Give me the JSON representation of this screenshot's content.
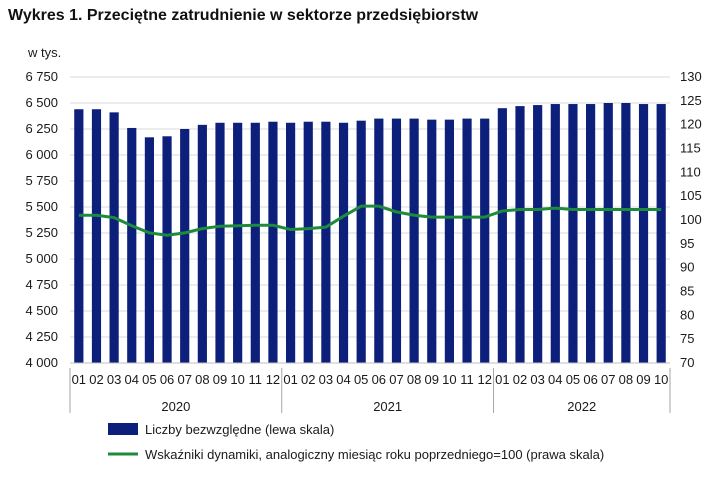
{
  "chart_data": {
    "type": "bar",
    "title": "Wykres 1. Przeciętne zatrudnienie w sektorze przedsiębiorstw",
    "ylabel": "w tys.",
    "ylim": [
      4000,
      6750
    ],
    "y_ticks": [
      "4 000",
      "4 250",
      "4 500",
      "4 750",
      "5 000",
      "5 250",
      "5 500",
      "5 750",
      "6 000",
      "6 250",
      "6 500",
      "6 750"
    ],
    "y2lim": [
      70,
      130
    ],
    "y2_ticks": [
      "70",
      "75",
      "80",
      "85",
      "90",
      "95",
      "100",
      "105",
      "110",
      "115",
      "120",
      "125",
      "130"
    ],
    "categories": [
      "01",
      "02",
      "03",
      "04",
      "05",
      "06",
      "07",
      "08",
      "09",
      "10",
      "11",
      "12",
      "01",
      "02",
      "03",
      "04",
      "05",
      "06",
      "07",
      "08",
      "09",
      "10",
      "11",
      "12",
      "01",
      "02",
      "03",
      "04",
      "05",
      "06",
      "07",
      "08",
      "09",
      "10"
    ],
    "years": [
      {
        "label": "2020",
        "count": 12
      },
      {
        "label": "2021",
        "count": 12
      },
      {
        "label": "2022",
        "count": 10
      }
    ],
    "series": [
      {
        "name": "Liczby bezwzględne (lewa skala)",
        "type": "bar",
        "axis": "left",
        "color": "#0c1f7a",
        "values": [
          6440,
          6440,
          6410,
          6260,
          6170,
          6180,
          6250,
          6290,
          6310,
          6310,
          6310,
          6320,
          6310,
          6320,
          6320,
          6310,
          6330,
          6350,
          6350,
          6350,
          6340,
          6340,
          6350,
          6350,
          6450,
          6470,
          6480,
          6490,
          6490,
          6490,
          6500,
          6500,
          6490,
          6490
        ]
      },
      {
        "name": "Wskaźniki dynamiki, analogiczny miesiąc roku poprzedniego=100 (prawa skala)",
        "type": "line",
        "axis": "right",
        "color": "#1e8a3c",
        "values": [
          101.0,
          101.0,
          100.5,
          98.8,
          97.3,
          96.8,
          97.3,
          98.2,
          98.7,
          98.8,
          98.9,
          98.9,
          98.0,
          98.2,
          98.5,
          100.8,
          102.9,
          102.9,
          101.7,
          101.0,
          100.6,
          100.6,
          100.6,
          100.6,
          101.9,
          102.2,
          102.2,
          102.5,
          102.2,
          102.2,
          102.2,
          102.2,
          102.2,
          102.2
        ]
      }
    ],
    "legend_position": "bottom"
  }
}
